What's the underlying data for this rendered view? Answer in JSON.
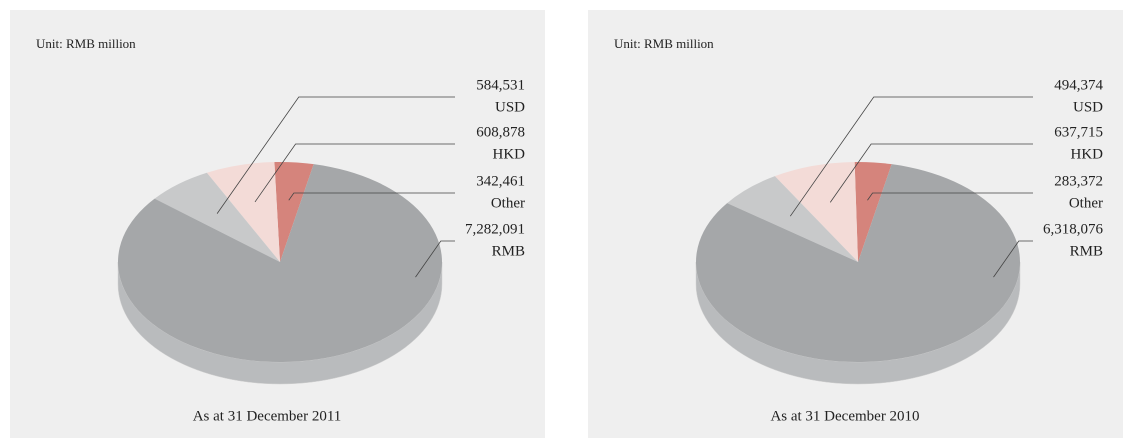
{
  "chart_data": [
    {
      "type": "pie",
      "unit_label": "Unit: RMB million",
      "caption": "As at 31 December 2011",
      "categories": [
        "USD",
        "HKD",
        "Other",
        "RMB"
      ],
      "values": [
        584531,
        608878,
        342461,
        7282091
      ],
      "value_labels": [
        "584,531",
        "608,878",
        "342,461",
        "7,282,091"
      ],
      "colors": [
        "#c8c9ca",
        "#f3dbd7",
        "#d5847c",
        "#a5a7a9"
      ]
    },
    {
      "type": "pie",
      "unit_label": "Unit: RMB million",
      "caption": "As at 31 December 2010",
      "categories": [
        "USD",
        "HKD",
        "Other",
        "RMB"
      ],
      "values": [
        494374,
        637715,
        283372,
        6318076
      ],
      "value_labels": [
        "494,374",
        "637,715",
        "283,372",
        "6,318,076"
      ],
      "colors": [
        "#c8c9ca",
        "#f3dbd7",
        "#d5847c",
        "#a5a7a9"
      ]
    }
  ]
}
